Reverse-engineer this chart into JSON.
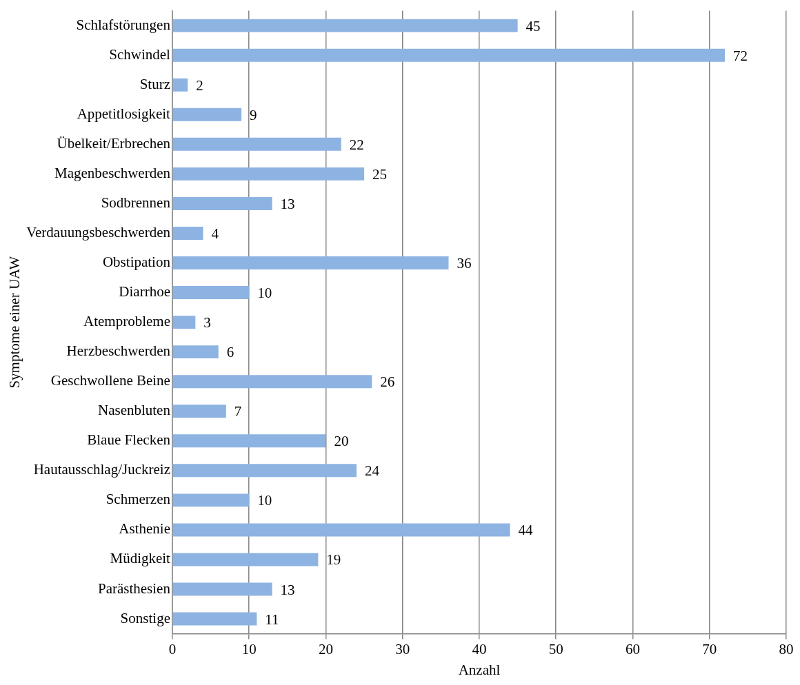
{
  "chart_data": {
    "type": "bar",
    "orientation": "horizontal",
    "xlabel": "Anzahl",
    "ylabel": "Symptome einer UAW",
    "categories": [
      "Schlafstörungen",
      "Schwindel",
      "Sturz",
      "Appetitlosigkeit",
      "Übelkeit/Erbrechen",
      "Magenbeschwerden",
      "Sodbrennen",
      "Verdauungsbeschwerden",
      "Obstipation",
      "Diarrhoe",
      "Atemprobleme",
      "Herzbeschwerden",
      "Geschwollene Beine",
      "Nasenbluten",
      "Blaue Flecken",
      "Hautausschlag/Juckreiz",
      "Schmerzen",
      "Asthenie",
      "Müdigkeit",
      "Parästhesien",
      "Sonstige"
    ],
    "values": [
      45,
      72,
      2,
      9,
      22,
      25,
      13,
      4,
      36,
      10,
      3,
      6,
      26,
      7,
      20,
      24,
      10,
      44,
      19,
      13,
      11
    ],
    "color": "#8db3e2",
    "xlim": [
      0,
      80
    ],
    "xticks": [
      0,
      10,
      20,
      30,
      40,
      50,
      60,
      70,
      80
    ],
    "grid": "x",
    "data_labels": true,
    "legend": false
  }
}
